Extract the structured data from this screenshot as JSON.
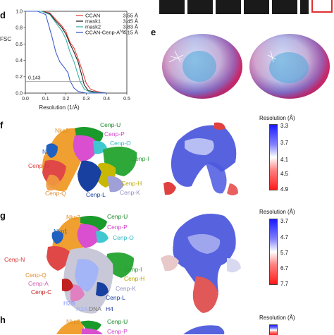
{
  "panels": {
    "d": "d",
    "e": "e",
    "f": "f",
    "g": "g",
    "h": "h"
  },
  "chart_data": {
    "type": "line",
    "xlabel": "Resolution (1/Å)",
    "ylabel": "FSC",
    "xlim": [
      0.0,
      0.5
    ],
    "ylim": [
      0.0,
      1.0
    ],
    "xticks": [
      "0.0",
      "0.1",
      "0.2",
      "0.3",
      "0.4",
      "0.5"
    ],
    "yticks": [
      "0.0",
      "0.2",
      "0.4",
      "0.6",
      "0.8",
      "1.0"
    ],
    "threshold": 0.143,
    "threshold_label": "0.143",
    "legend": "top-right",
    "series": [
      {
        "name": "CCAN",
        "resolution": "3.55 Å",
        "color": "#e8403a",
        "x": [
          0.0,
          0.08,
          0.12,
          0.15,
          0.18,
          0.2,
          0.22,
          0.24,
          0.26,
          0.28,
          0.3,
          0.32,
          0.35,
          0.4
        ],
        "y": [
          1.0,
          1.0,
          0.98,
          0.9,
          0.82,
          0.75,
          0.62,
          0.55,
          0.42,
          0.28,
          0.12,
          0.05,
          0.02,
          0.0
        ]
      },
      {
        "name": "mask1",
        "resolution": "3.45 Å",
        "color": "#222222",
        "x": [
          0.0,
          0.08,
          0.12,
          0.15,
          0.18,
          0.2,
          0.22,
          0.24,
          0.26,
          0.28,
          0.29,
          0.31,
          0.35,
          0.4
        ],
        "y": [
          1.0,
          1.0,
          0.97,
          0.88,
          0.8,
          0.72,
          0.6,
          0.5,
          0.38,
          0.2,
          0.1,
          0.03,
          0.01,
          0.0
        ]
      },
      {
        "name": "mask2",
        "resolution": "3.83 Å",
        "color": "#3fb2a8",
        "x": [
          0.0,
          0.08,
          0.12,
          0.15,
          0.18,
          0.2,
          0.22,
          0.24,
          0.26,
          0.27,
          0.29,
          0.32,
          0.4
        ],
        "y": [
          1.0,
          1.0,
          0.96,
          0.86,
          0.76,
          0.66,
          0.5,
          0.38,
          0.22,
          0.14,
          0.05,
          0.01,
          0.0
        ]
      },
      {
        "name": "CCAN-Cenp-A",
        "name_sup": "Nuc",
        "resolution": "4.15 Å",
        "color": "#3a5fd0",
        "x": [
          0.0,
          0.06,
          0.1,
          0.13,
          0.15,
          0.17,
          0.19,
          0.21,
          0.22,
          0.24,
          0.26,
          0.3,
          0.4
        ],
        "y": [
          1.0,
          1.0,
          0.96,
          0.7,
          0.5,
          0.38,
          0.32,
          0.25,
          0.15,
          0.06,
          0.02,
          0.0,
          0.0
        ]
      }
    ]
  },
  "panel_f": {
    "labels": [
      "Nkp2",
      "Cenp-U",
      "Cenp-P",
      "Cenp-O",
      "Nkp1",
      "Cenp-I",
      "Cenp-N",
      "Cenp-H",
      "Cenp-Q",
      "Cenp-L",
      "Cenp-K"
    ],
    "colorbar": {
      "title": "Resolution (Å)",
      "ticks": [
        "3.3",
        "3.7",
        "4.1",
        "4.5",
        "4.9"
      ]
    }
  },
  "panel_g": {
    "labels": [
      "Nkp2",
      "Cenp-U",
      "Cenp-P",
      "Nkp1",
      "Cenp-O",
      "Cenp-N",
      "Cenp-I",
      "Cenp-Q",
      "Cenp-H",
      "Cenp-A",
      "Cenp-K",
      "Cenp-C",
      "Cenp-L",
      "H2B",
      "H2A",
      "DNA",
      "H4"
    ],
    "colorbar": {
      "title": "Resolution (Å)",
      "ticks": [
        "3.7",
        "4.7",
        "5.7",
        "6.7",
        "7.7"
      ]
    }
  },
  "panel_h": {
    "labels": [
      "Nkp2",
      "Cenp-U",
      "Cenp-P"
    ],
    "colorbar": {
      "title": "Resolution (Å)"
    }
  },
  "colors": {
    "nkp2": "#f0a030",
    "cenp_u": "#1a9a2a",
    "cenp_p": "#d94fd0",
    "cenp_o": "#3fc8d0",
    "nkp1": "#2060c0",
    "cenp_i": "#2fa83a",
    "cenp_n": "#e04848",
    "cenp_h": "#c8b800",
    "cenp_q": "#f09a40",
    "cenp_l": "#1840a0",
    "cenp_k": "#a0a0d8",
    "cenp_a": "#e080c0",
    "cenp_c": "#c02020",
    "h2b": "#8090ff",
    "h2a": "#9ab0ff",
    "dna": "#888888",
    "h4": "#2a40a0"
  }
}
